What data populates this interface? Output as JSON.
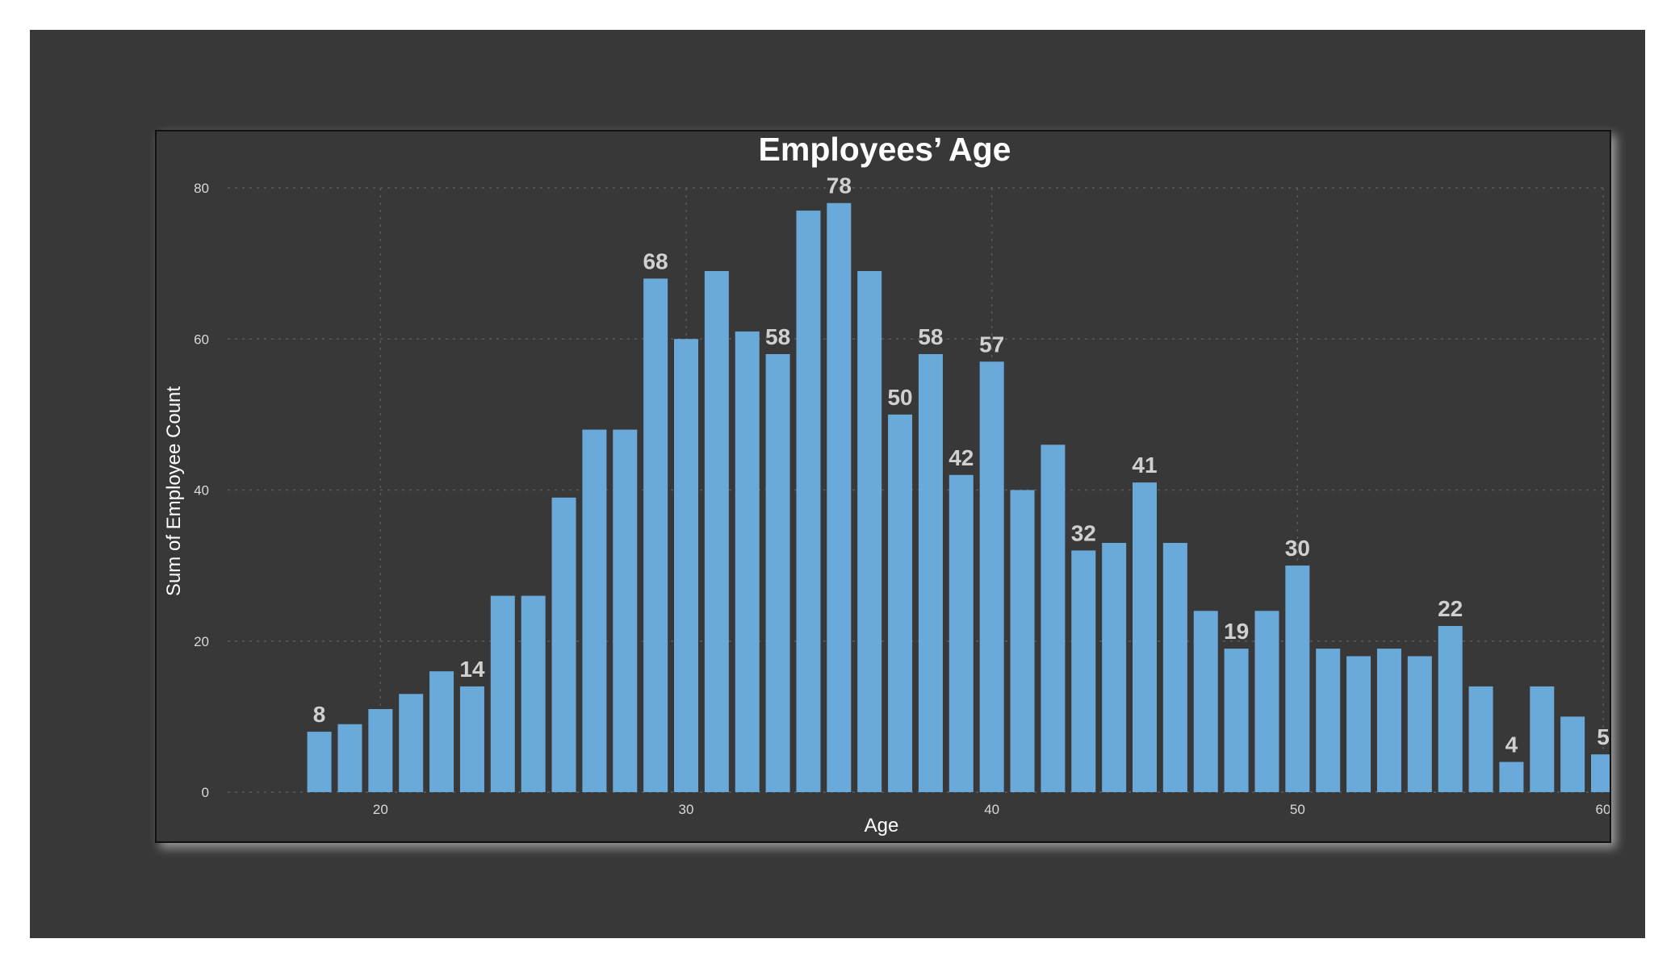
{
  "chart_data": {
    "type": "bar",
    "title": "Employees’ Age",
    "xlabel": "Age",
    "ylabel": "Sum of Employee Count",
    "x": [
      18,
      19,
      20,
      21,
      22,
      23,
      24,
      25,
      26,
      27,
      28,
      29,
      30,
      31,
      32,
      33,
      34,
      35,
      36,
      37,
      38,
      39,
      40,
      41,
      42,
      43,
      44,
      45,
      46,
      47,
      48,
      49,
      50,
      51,
      52,
      53,
      54,
      55,
      56,
      57,
      58,
      59,
      60
    ],
    "values": [
      8,
      9,
      11,
      13,
      16,
      14,
      26,
      26,
      39,
      48,
      48,
      68,
      60,
      69,
      61,
      58,
      77,
      78,
      69,
      50,
      58,
      42,
      57,
      40,
      46,
      32,
      33,
      41,
      33,
      24,
      19,
      24,
      30,
      19,
      18,
      19,
      18,
      22,
      14,
      4,
      14,
      10,
      5
    ],
    "data_labels": [
      {
        "x": 18,
        "text": "8"
      },
      {
        "x": 23,
        "text": "14"
      },
      {
        "x": 29,
        "text": "68"
      },
      {
        "x": 33,
        "text": "58"
      },
      {
        "x": 35,
        "text": "78"
      },
      {
        "x": 37,
        "text": "50"
      },
      {
        "x": 38,
        "text": "58"
      },
      {
        "x": 39,
        "text": "42"
      },
      {
        "x": 40,
        "text": "57"
      },
      {
        "x": 43,
        "text": "32"
      },
      {
        "x": 45,
        "text": "41"
      },
      {
        "x": 48,
        "text": "19"
      },
      {
        "x": 50,
        "text": "30"
      },
      {
        "x": 55,
        "text": "22"
      },
      {
        "x": 57,
        "text": "4"
      },
      {
        "x": 60,
        "text": "5"
      }
    ],
    "xlim": [
      15,
      60
    ],
    "ylim": [
      0,
      80
    ],
    "xticks": [
      "20",
      "30",
      "40",
      "50",
      "60"
    ],
    "yticks": [
      "0",
      "20",
      "40",
      "60",
      "80"
    ],
    "grid": true,
    "colors": {
      "bar": "#6aaadb",
      "background": "#383838",
      "frame": "#111111"
    }
  }
}
